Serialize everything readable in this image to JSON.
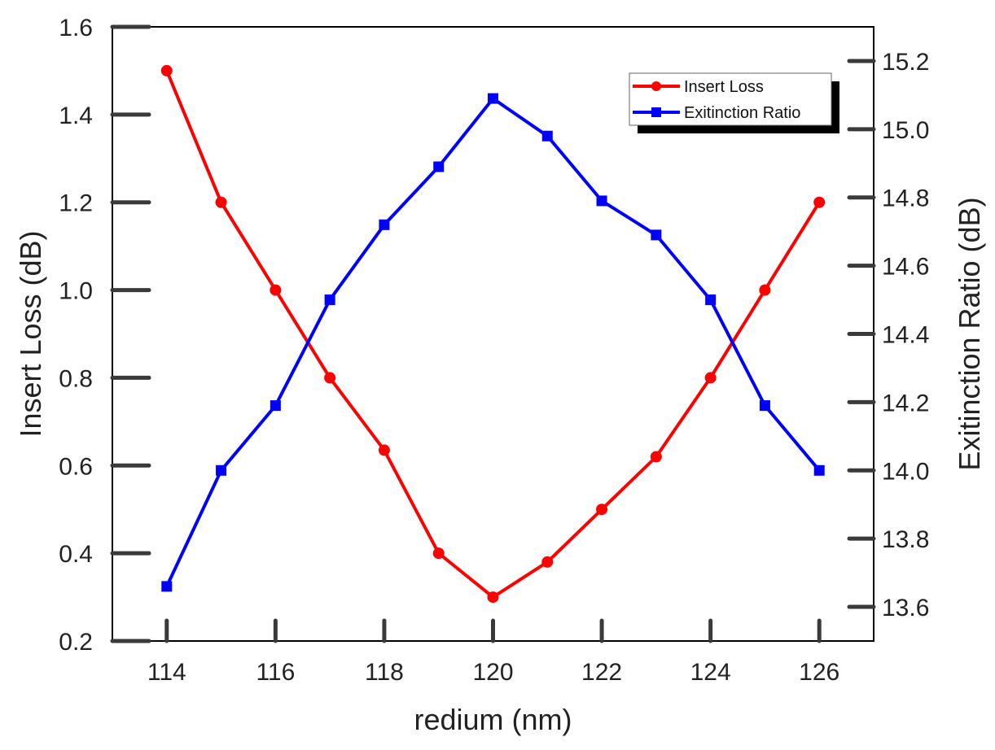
{
  "chart_data": {
    "type": "line",
    "xlabel": "redium (nm)",
    "ylabel_left": "Insert Loss (dB)",
    "ylabel_right": "Exitinction Ratio (dB)",
    "xlim": [
      113,
      127
    ],
    "ylim_left": [
      0.2,
      1.6
    ],
    "ylim_right": [
      13.5,
      15.3
    ],
    "x_ticks": [
      114,
      116,
      118,
      120,
      122,
      124,
      126
    ],
    "x_tick_labels": [
      "114",
      "116",
      "118",
      "120",
      "122",
      "124",
      "126"
    ],
    "y_left_ticks": [
      0.2,
      0.4,
      0.6,
      0.8,
      1.0,
      1.2,
      1.4,
      1.6
    ],
    "y_left_tick_labels": [
      "0.2",
      "0.4",
      "0.6",
      "0.8",
      "1.0",
      "1.2",
      "1.4",
      "1.6"
    ],
    "y_right_ticks": [
      13.6,
      13.8,
      14.0,
      14.2,
      14.4,
      14.6,
      14.8,
      15.0,
      15.2
    ],
    "y_right_tick_labels": [
      "13.6",
      "13.8",
      "14.0",
      "14.2",
      "14.4",
      "14.6",
      "14.8",
      "15.0",
      "15.2"
    ],
    "x": [
      114,
      115,
      116,
      117,
      118,
      119,
      120,
      121,
      122,
      123,
      124,
      125,
      126
    ],
    "series": [
      {
        "name": "Insert Loss",
        "axis": "left",
        "color": "#ff0000",
        "marker": "circle",
        "values": [
          1.5,
          1.2,
          1.0,
          0.8,
          0.635,
          0.4,
          0.3,
          0.38,
          0.5,
          0.62,
          0.8,
          1.0,
          1.2
        ]
      },
      {
        "name": "Exitinction Ratio",
        "axis": "right",
        "color": "#0000ff",
        "marker": "square",
        "values": [
          13.66,
          14.0,
          14.19,
          14.5,
          14.72,
          14.89,
          15.09,
          14.98,
          14.79,
          14.69,
          14.5,
          14.19,
          14.0
        ]
      }
    ],
    "legend": {
      "position": "top-right",
      "entries": [
        "Insert Loss",
        "Exitinction Ratio"
      ]
    },
    "grid": false
  }
}
